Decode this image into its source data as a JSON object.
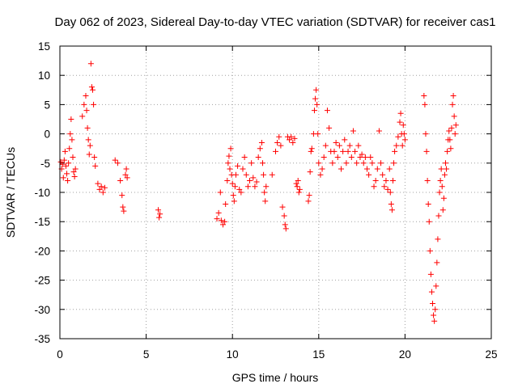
{
  "chart_data": {
    "type": "scatter",
    "title": "Day 062 of 2023, Sidereal Day-to-day VTEC variation (SDTVAR) for receiver cas1",
    "xlabel": "GPS time / hours",
    "ylabel": "SDTVAR / TECUs",
    "xlim": [
      0,
      25
    ],
    "ylim": [
      -35,
      15
    ],
    "xticks": [
      0,
      5,
      10,
      15,
      20,
      25
    ],
    "yticks": [
      15,
      10,
      5,
      0,
      -5,
      -10,
      -15,
      -20,
      -25,
      -30,
      -35
    ],
    "grid": true,
    "marker": "+",
    "series_color": "#ff0000",
    "series": [
      {
        "name": "SDTVAR",
        "points": [
          [
            0.05,
            -4.8
          ],
          [
            0.1,
            -6
          ],
          [
            0.15,
            -5.2
          ],
          [
            0.2,
            -7.5
          ],
          [
            0.25,
            -4.5
          ],
          [
            0.3,
            -3
          ],
          [
            0.35,
            -5.5
          ],
          [
            0.4,
            -6.8
          ],
          [
            0.45,
            -8
          ],
          [
            0.5,
            -5
          ],
          [
            0.55,
            -2.5
          ],
          [
            0.6,
            0
          ],
          [
            0.65,
            2.5
          ],
          [
            0.7,
            -1
          ],
          [
            0.75,
            -4
          ],
          [
            0.8,
            -6.5
          ],
          [
            0.85,
            -7.3
          ],
          [
            0.9,
            -6
          ],
          [
            1.3,
            3
          ],
          [
            1.4,
            5
          ],
          [
            1.5,
            6.5
          ],
          [
            1.55,
            4
          ],
          [
            1.6,
            1
          ],
          [
            1.65,
            -1
          ],
          [
            1.7,
            -3.5
          ],
          [
            1.75,
            -2
          ],
          [
            1.8,
            12
          ],
          [
            1.85,
            8
          ],
          [
            1.9,
            7.5
          ],
          [
            1.95,
            5
          ],
          [
            2.0,
            -4
          ],
          [
            2.05,
            -5.5
          ],
          [
            2.2,
            -8.5
          ],
          [
            2.3,
            -9.5
          ],
          [
            2.4,
            -9
          ],
          [
            2.5,
            -10
          ],
          [
            2.6,
            -9.2
          ],
          [
            3.2,
            -4.5
          ],
          [
            3.35,
            -5
          ],
          [
            3.5,
            -8
          ],
          [
            3.6,
            -10.5
          ],
          [
            3.65,
            -12.5
          ],
          [
            3.7,
            -13.2
          ],
          [
            3.8,
            -7
          ],
          [
            3.85,
            -6
          ],
          [
            3.9,
            -7.5
          ],
          [
            5.7,
            -13
          ],
          [
            5.75,
            -14.3
          ],
          [
            5.8,
            -13.7
          ],
          [
            9.1,
            -14.5
          ],
          [
            9.2,
            -13.5
          ],
          [
            9.3,
            -10
          ],
          [
            9.35,
            -14.8
          ],
          [
            9.45,
            -15.5
          ],
          [
            9.55,
            -15
          ],
          [
            9.6,
            -12
          ],
          [
            9.7,
            -8
          ],
          [
            9.75,
            -5
          ],
          [
            9.8,
            -3.8
          ],
          [
            9.85,
            -6
          ],
          [
            9.9,
            -2.5
          ],
          [
            9.95,
            -7
          ],
          [
            10.0,
            -8.5
          ],
          [
            10.05,
            -10.5
          ],
          [
            10.1,
            -11.5
          ],
          [
            10.15,
            -9
          ],
          [
            10.2,
            -7
          ],
          [
            10.3,
            -5.5
          ],
          [
            10.4,
            -9.5
          ],
          [
            10.5,
            -10
          ],
          [
            10.6,
            -6
          ],
          [
            10.7,
            -4
          ],
          [
            10.8,
            -7
          ],
          [
            10.9,
            -9
          ],
          [
            11.0,
            -8
          ],
          [
            11.1,
            -5
          ],
          [
            11.2,
            -7.5
          ],
          [
            11.3,
            -9
          ],
          [
            11.4,
            -8.2
          ],
          [
            11.5,
            -4
          ],
          [
            11.6,
            -2.5
          ],
          [
            11.7,
            -1.5
          ],
          [
            11.75,
            -5
          ],
          [
            11.8,
            -7
          ],
          [
            11.85,
            -10
          ],
          [
            11.9,
            -11.5
          ],
          [
            11.95,
            -9
          ],
          [
            12.3,
            -7
          ],
          [
            12.5,
            -3
          ],
          [
            12.6,
            -1.5
          ],
          [
            12.7,
            -0.5
          ],
          [
            12.8,
            -2
          ],
          [
            12.9,
            -12.5
          ],
          [
            13.0,
            -14
          ],
          [
            13.05,
            -15.5
          ],
          [
            13.1,
            -16.2
          ],
          [
            13.2,
            -0.5
          ],
          [
            13.3,
            -1
          ],
          [
            13.4,
            -0.5
          ],
          [
            13.5,
            -1.5
          ],
          [
            13.6,
            -0.8
          ],
          [
            13.7,
            -8.5
          ],
          [
            13.75,
            -9
          ],
          [
            13.8,
            -8
          ],
          [
            13.85,
            -10
          ],
          [
            13.9,
            -9.5
          ],
          [
            14.4,
            -11.5
          ],
          [
            14.45,
            -10.5
          ],
          [
            14.5,
            -6.5
          ],
          [
            14.55,
            -3
          ],
          [
            14.6,
            -2.5
          ],
          [
            14.7,
            0
          ],
          [
            14.75,
            4
          ],
          [
            14.8,
            6
          ],
          [
            14.85,
            7.5
          ],
          [
            14.9,
            5
          ],
          [
            14.95,
            0
          ],
          [
            15.0,
            -5
          ],
          [
            15.1,
            -7
          ],
          [
            15.2,
            -6
          ],
          [
            15.3,
            -4
          ],
          [
            15.4,
            -2
          ],
          [
            15.5,
            4
          ],
          [
            15.6,
            1
          ],
          [
            15.7,
            -3
          ],
          [
            15.8,
            -5
          ],
          [
            15.9,
            -3
          ],
          [
            16.0,
            -1.5
          ],
          [
            16.1,
            -4
          ],
          [
            16.2,
            -2
          ],
          [
            16.3,
            -6
          ],
          [
            16.4,
            -3
          ],
          [
            16.5,
            -1
          ],
          [
            16.6,
            -5
          ],
          [
            16.7,
            -3
          ],
          [
            16.8,
            -2
          ],
          [
            16.9,
            -4
          ],
          [
            17.0,
            0.5
          ],
          [
            17.1,
            -3
          ],
          [
            17.2,
            -5
          ],
          [
            17.3,
            -2
          ],
          [
            17.4,
            -4
          ],
          [
            17.5,
            -3.5
          ],
          [
            17.6,
            -5
          ],
          [
            17.7,
            -4
          ],
          [
            17.8,
            -6
          ],
          [
            17.9,
            -7
          ],
          [
            18.0,
            -4
          ],
          [
            18.1,
            -5
          ],
          [
            18.2,
            -9
          ],
          [
            18.3,
            -8
          ],
          [
            18.4,
            -6
          ],
          [
            18.5,
            0.5
          ],
          [
            18.6,
            -5
          ],
          [
            18.7,
            -7
          ],
          [
            18.8,
            -9
          ],
          [
            18.9,
            -8
          ],
          [
            19.0,
            -9.5
          ],
          [
            19.1,
            -6
          ],
          [
            19.15,
            -10
          ],
          [
            19.2,
            -12
          ],
          [
            19.25,
            -13
          ],
          [
            19.3,
            -8
          ],
          [
            19.35,
            -5
          ],
          [
            19.4,
            -3
          ],
          [
            19.5,
            -2
          ],
          [
            19.6,
            -0.5
          ],
          [
            19.7,
            2
          ],
          [
            19.75,
            3.5
          ],
          [
            19.8,
            0
          ],
          [
            19.85,
            -2
          ],
          [
            19.9,
            1.5
          ],
          [
            19.95,
            0
          ],
          [
            20.0,
            -1
          ],
          [
            21.1,
            6.5
          ],
          [
            21.15,
            5
          ],
          [
            21.2,
            0
          ],
          [
            21.25,
            -3
          ],
          [
            21.3,
            -8
          ],
          [
            21.35,
            -12
          ],
          [
            21.4,
            -15
          ],
          [
            21.45,
            -20
          ],
          [
            21.5,
            -24
          ],
          [
            21.55,
            -27
          ],
          [
            21.6,
            -29
          ],
          [
            21.65,
            -31
          ],
          [
            21.7,
            -32
          ],
          [
            21.75,
            -30
          ],
          [
            21.8,
            -26
          ],
          [
            21.85,
            -22
          ],
          [
            21.9,
            -18
          ],
          [
            21.95,
            -14
          ],
          [
            22.0,
            -10
          ],
          [
            22.05,
            -8
          ],
          [
            22.1,
            -6
          ],
          [
            22.15,
            -9
          ],
          [
            22.2,
            -13
          ],
          [
            22.25,
            -11
          ],
          [
            22.3,
            -7
          ],
          [
            22.35,
            -5
          ],
          [
            22.4,
            -6
          ],
          [
            22.45,
            -3
          ],
          [
            22.5,
            -1
          ],
          [
            22.55,
            0.5
          ],
          [
            22.6,
            -1
          ],
          [
            22.65,
            -2.5
          ],
          [
            22.7,
            1
          ],
          [
            22.75,
            5
          ],
          [
            22.8,
            6.5
          ],
          [
            22.85,
            3
          ],
          [
            22.9,
            0
          ],
          [
            22.95,
            1.5
          ]
        ]
      }
    ]
  }
}
